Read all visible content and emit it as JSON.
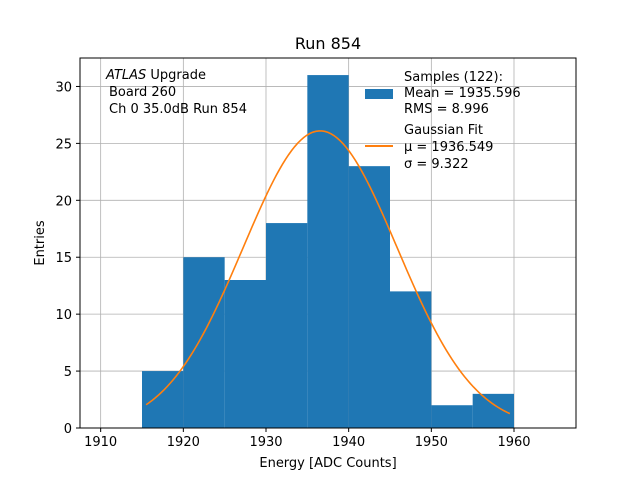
{
  "chart_data": {
    "type": "bar",
    "title": "Run 854",
    "xlabel": "Energy [ADC Counts]",
    "ylabel": "Entries",
    "xlim": [
      1907.5,
      1967.5
    ],
    "ylim": [
      0,
      32.5
    ],
    "xticks": [
      1910,
      1920,
      1930,
      1940,
      1950,
      1960
    ],
    "yticks": [
      0,
      5,
      10,
      15,
      20,
      25,
      30
    ],
    "grid": true,
    "bin_edges": [
      1915,
      1920,
      1925,
      1930,
      1935,
      1940,
      1945,
      1950,
      1955,
      1960
    ],
    "counts": [
      5,
      15,
      13,
      18,
      31,
      23,
      12,
      2,
      3
    ],
    "bar_color": "#1f77b4",
    "fit": {
      "label": "Gaussian Fit",
      "mu_text": "μ = 1936.549",
      "sigma_text": "σ = 9.322",
      "mu": 1936.549,
      "sigma": 9.322,
      "amplitude": 26.1,
      "x_range": [
        1915.5,
        1959.5
      ],
      "color": "#ff7f0e"
    },
    "samples": {
      "label": "Samples (122):",
      "mean_text": "Mean = 1935.596",
      "rms_text": "RMS = 8.996"
    },
    "annotation": {
      "italic": "ATLAS",
      "upgrade": " Upgrade",
      "line2": "Board 260",
      "line3": "Ch 0 35.0dB  Run 854"
    },
    "legend_placement": "top-right"
  }
}
